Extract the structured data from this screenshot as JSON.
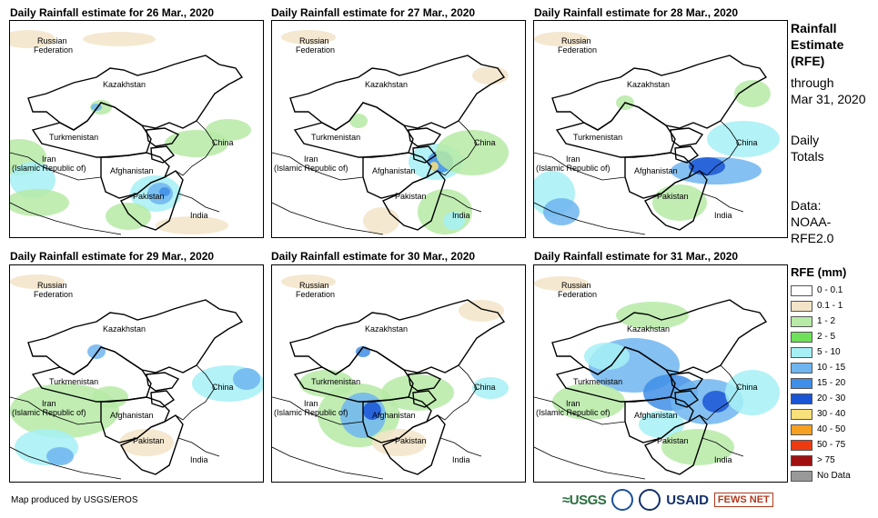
{
  "panels": [
    {
      "title": "Daily Rainfall estimate for 26 Mar., 2020",
      "rain": "p1"
    },
    {
      "title": "Daily Rainfall estimate for 27 Mar., 2020",
      "rain": "p2"
    },
    {
      "title": "Daily Rainfall estimate for 28 Mar., 2020",
      "rain": "p3"
    },
    {
      "title": "Daily Rainfall estimate for 29 Mar., 2020",
      "rain": "p4"
    },
    {
      "title": "Daily Rainfall estimate for 30 Mar., 2020",
      "rain": "p5"
    },
    {
      "title": "Daily Rainfall estimate for 31 Mar., 2020",
      "rain": "p6"
    }
  ],
  "countries": {
    "russia_1": "Russian",
    "russia_2": "Federation",
    "kazakhstan": "Kazakhstan",
    "turkmenistan": "Turkmenistan",
    "china": "China",
    "iran_1": "Iran",
    "iran_2": "(Islamic Republic of)",
    "afghanistan": "Afghanistan",
    "pakistan": "Pakistan",
    "india": "India"
  },
  "sidebar": {
    "title_1": "Rainfall",
    "title_2": "Estimate",
    "title_3": "(RFE)",
    "through_1": "through",
    "through_2": "Mar 31, 2020",
    "daily_1": "Daily",
    "daily_2": "Totals",
    "data_1": "Data:",
    "data_2": "NOAA-",
    "data_3": "RFE2.0"
  },
  "legend": {
    "title": "RFE (mm)",
    "items": [
      {
        "label": "0 - 0.1",
        "color": "#ffffff"
      },
      {
        "label": "0.1 - 1",
        "color": "#f3e4c8"
      },
      {
        "label": "1 - 2",
        "color": "#b6eaa6"
      },
      {
        "label": "2 - 5",
        "color": "#6ee05a"
      },
      {
        "label": "5 - 10",
        "color": "#a6f0f5"
      },
      {
        "label": "10 - 15",
        "color": "#6fb5f0"
      },
      {
        "label": "15 - 20",
        "color": "#3f8ee8"
      },
      {
        "label": "20 - 30",
        "color": "#1a55d6"
      },
      {
        "label": "30 - 40",
        "color": "#f8e07a"
      },
      {
        "label": "40 - 50",
        "color": "#f5a020"
      },
      {
        "label": "50 - 75",
        "color": "#ee3a10"
      },
      {
        "label": "> 75",
        "color": "#a01010"
      },
      {
        "label": "No Data",
        "color": "#999999"
      }
    ]
  },
  "footer": {
    "credit": "Map produced by USGS/EROS"
  },
  "logos": {
    "usgs": "≈USGS",
    "usaid": "USAID",
    "fews": "FEWS NET"
  }
}
